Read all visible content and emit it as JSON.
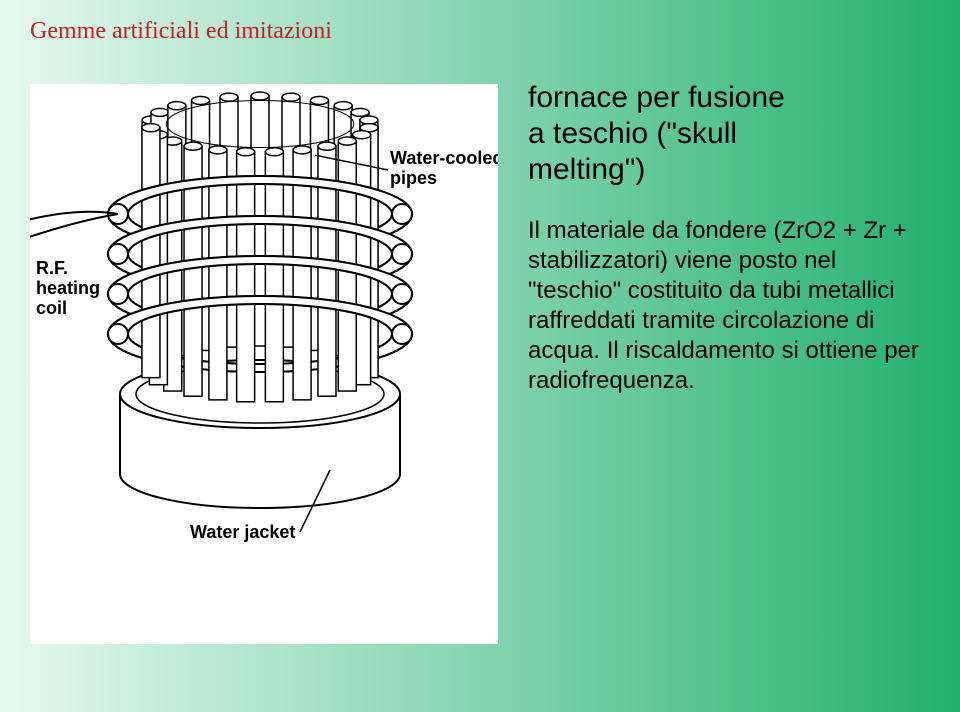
{
  "header": {
    "title": "Gemme artificiali ed imitazioni",
    "color": "#c81e28"
  },
  "text": {
    "title_line1": "fornace per fusione",
    "title_line2": "a teschio (\"skull",
    "title_line3": "melting\")",
    "body": "Il materiale da fondere (ZrO2 + Zr + stabilizzatori) viene posto nel \"teschio\" costituito da tubi metallici raffreddati tramite circolazione di acqua. Il riscaldamento si ottiene per radiofrequenza."
  },
  "diagram": {
    "background": "#ffffff",
    "stroke": "#000000",
    "labels": {
      "pipes_l1": "Water-cooled",
      "pipes_l2": "pipes",
      "coil_l1": "R.F.",
      "coil_l2": "heating",
      "coil_l3": "coil",
      "jacket": "Water jacket"
    },
    "label_fontsize": 18,
    "tube_count_front": 12,
    "tube_count_back": 11,
    "coil_turns": 4
  }
}
